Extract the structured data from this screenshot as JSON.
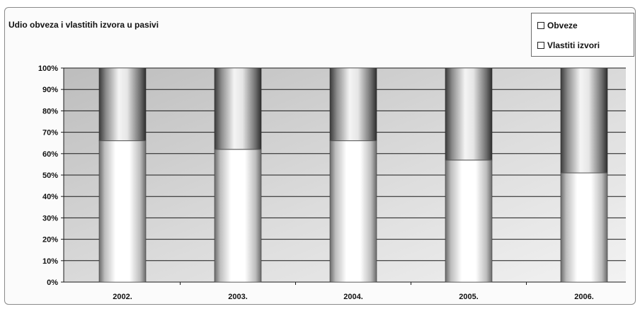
{
  "chart_data": {
    "type": "bar",
    "stacked": true,
    "percent": true,
    "title": "Udio obveza i vlastitih izvora u pasivi",
    "categories": [
      "2002.",
      "2003.",
      "2004.",
      "2005.",
      "2006."
    ],
    "series": [
      {
        "name": "Obveze",
        "values": [
          66,
          62,
          66,
          57,
          51
        ]
      },
      {
        "name": "Vlastiti izvori",
        "values": [
          34,
          38,
          34,
          43,
          49
        ]
      }
    ],
    "ylim": [
      0,
      100
    ],
    "yticks": [
      "0%",
      "10%",
      "20%",
      "30%",
      "40%",
      "50%",
      "60%",
      "70%",
      "80%",
      "90%",
      "100%"
    ],
    "grid": true,
    "legend_position": "top-right"
  }
}
